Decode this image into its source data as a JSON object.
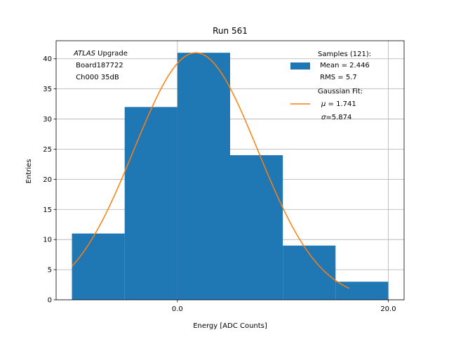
{
  "chart_data": {
    "type": "bar",
    "title": "Run 561",
    "xlabel": "Energy [ADC Counts]",
    "ylabel": "Entries",
    "xlim": [
      -11.5,
      21.5
    ],
    "ylim": [
      0,
      43
    ],
    "x_ticks": [
      0.0,
      20.0
    ],
    "x_tick_labels": [
      "0.0",
      "20.0"
    ],
    "y_ticks": [
      0,
      5,
      10,
      15,
      20,
      25,
      30,
      35,
      40
    ],
    "grid": true,
    "histogram": {
      "bin_edges": [
        -10,
        -5,
        0,
        5,
        10,
        15,
        20
      ],
      "counts": [
        11,
        32,
        41,
        24,
        9,
        3
      ],
      "color": "#1f77b4"
    },
    "gaussian_fit": {
      "amplitude": 41,
      "mu": 1.741,
      "sigma": 5.874,
      "x_range": [
        -10,
        16.3
      ],
      "color": "#ff7f0e"
    },
    "annotation": {
      "line1_italic": "ATLAS",
      "line1_rest": " Upgrade",
      "line2": " Board187722",
      "line3": " Ch000 35dB"
    },
    "legend": {
      "position": "top-right",
      "samples_header": "Samples (121):",
      "samples_mean": " Mean = 2.446",
      "samples_rms": " RMS = 5.7",
      "fit_header": "Gaussian Fit:",
      "fit_mu_symbol": "μ",
      "fit_mu_value": " = 1.741",
      "fit_sigma_symbol": "σ",
      "fit_sigma_value": "=5.874"
    }
  }
}
